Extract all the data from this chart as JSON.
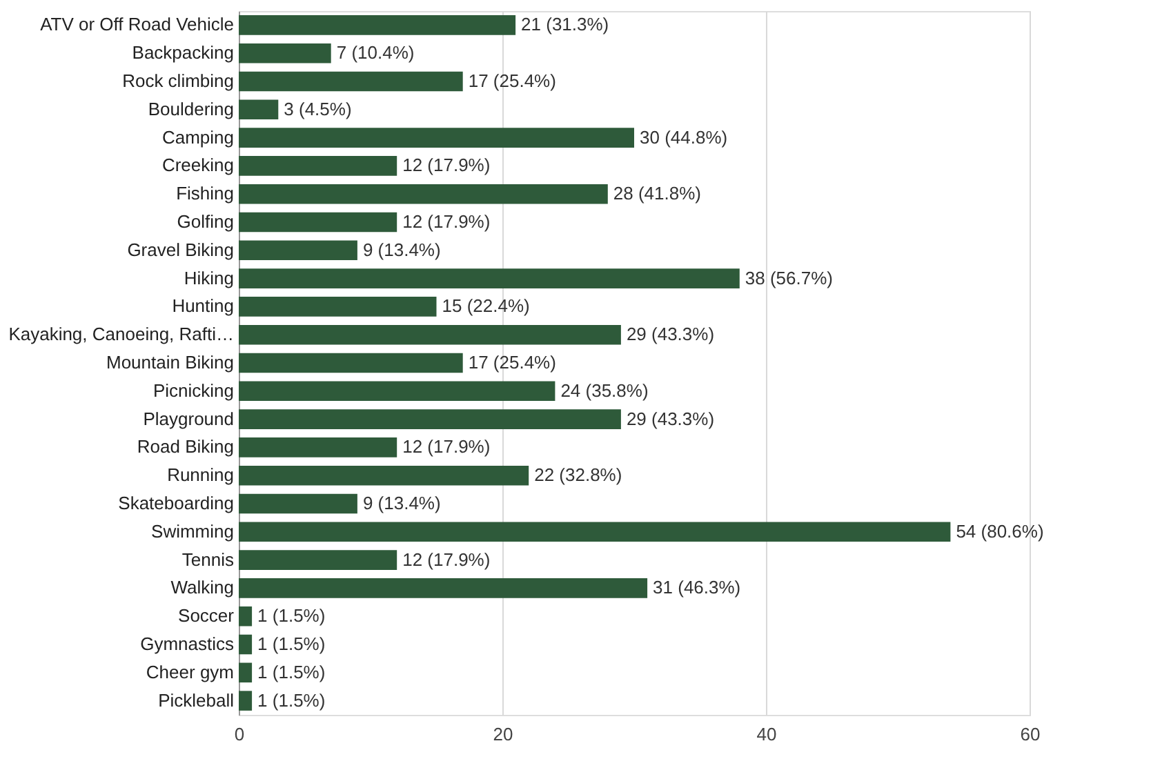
{
  "chart_data": {
    "type": "bar",
    "orientation": "horizontal",
    "categories": [
      "ATV or Off Road Vehicle",
      "Backpacking",
      "Rock climbing",
      "Bouldering",
      "Camping",
      "Creeking",
      "Fishing",
      "Golfing",
      "Gravel Biking",
      "Hiking",
      "Hunting",
      "Kayaking, Canoeing, Rafti…",
      "Mountain Biking",
      "Picnicking",
      "Playground",
      "Road Biking",
      "Running",
      "Skateboarding",
      "Swimming",
      "Tennis",
      "Walking",
      "Soccer",
      "Gymnastics",
      "Cheer gym",
      "Pickleball"
    ],
    "values": [
      21,
      7,
      17,
      3,
      30,
      12,
      28,
      12,
      9,
      38,
      15,
      29,
      17,
      24,
      29,
      12,
      22,
      9,
      54,
      12,
      31,
      1,
      1,
      1,
      1
    ],
    "value_labels": [
      "21 (31.3%)",
      "7 (10.4%)",
      "17 (25.4%)",
      "3 (4.5%)",
      "30 (44.8%)",
      "12 (17.9%)",
      "28 (41.8%)",
      "12 (17.9%)",
      "9 (13.4%)",
      "38 (56.7%)",
      "15 (22.4%)",
      "29 (43.3%)",
      "17 (25.4%)",
      "24 (35.8%)",
      "29 (43.3%)",
      "12 (17.9%)",
      "22 (32.8%)",
      "9 (13.4%)",
      "54 (80.6%)",
      "12 (17.9%)",
      "31 (46.3%)",
      "1 (1.5%)",
      "1 (1.5%)",
      "1 (1.5%)",
      "1 (1.5%)"
    ],
    "color": "#2e5a3a",
    "xlim": [
      0,
      60
    ],
    "xticks": [
      0,
      20,
      40,
      60
    ],
    "grid": "x"
  }
}
